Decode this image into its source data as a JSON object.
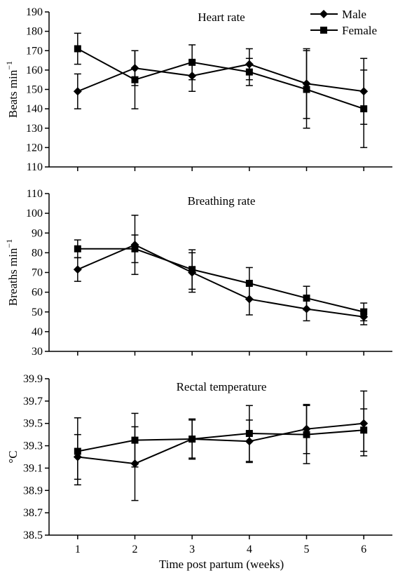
{
  "legend": [
    {
      "label": "Male",
      "marker": "diamond"
    },
    {
      "label": "Female",
      "marker": "square"
    }
  ],
  "xlabel": "Time post partum (weeks)",
  "chart_data": [
    {
      "type": "line",
      "title": "Heart rate",
      "xlabel": "Time post partum (weeks)",
      "ylabel": "Beats min",
      "ylabel_sup": "−1",
      "x": [
        1,
        2,
        3,
        4,
        5,
        6
      ],
      "xlim": [
        0.5,
        6.5
      ],
      "ylim": [
        110,
        190
      ],
      "yticks": [
        "110",
        "120",
        "130",
        "140",
        "150",
        "160",
        "170",
        "180",
        "190"
      ],
      "grid": false,
      "legend_position": "top-right",
      "series": [
        {
          "name": "Male",
          "marker": "diamond",
          "values": [
            149,
            161,
            157,
            163,
            153,
            149
          ],
          "error": [
            9,
            9,
            8,
            8,
            18,
            17
          ]
        },
        {
          "name": "Female",
          "marker": "square",
          "values": [
            171,
            155,
            164,
            159,
            150,
            140
          ],
          "error": [
            8,
            15,
            9,
            7,
            20,
            20
          ]
        }
      ]
    },
    {
      "type": "line",
      "title": "Breathing rate",
      "xlabel": "Time post partum (weeks)",
      "ylabel": "Breaths min",
      "ylabel_sup": "−1",
      "x": [
        1,
        2,
        3,
        4,
        5,
        6
      ],
      "xlim": [
        0.5,
        6.5
      ],
      "ylim": [
        30,
        110
      ],
      "yticks": [
        "30",
        "40",
        "50",
        "60",
        "70",
        "80",
        "90",
        "100",
        "110"
      ],
      "grid": false,
      "series": [
        {
          "name": "Male",
          "marker": "diamond",
          "values": [
            71.5,
            84,
            70,
            56.5,
            51.5,
            47.5
          ],
          "error": [
            6,
            15,
            10,
            8,
            6,
            4
          ]
        },
        {
          "name": "Female",
          "marker": "square",
          "values": [
            82,
            82,
            71.5,
            64.5,
            57,
            50
          ],
          "error": [
            4.5,
            7,
            10,
            8,
            6,
            4.5
          ]
        }
      ]
    },
    {
      "type": "line",
      "title": "Rectal temperature",
      "xlabel": "Time post partum (weeks)",
      "ylabel": "°C",
      "ylabel_sup": "",
      "x": [
        1,
        2,
        3,
        4,
        5,
        6
      ],
      "xlim": [
        0.5,
        6.5
      ],
      "ylim": [
        38.5,
        39.9
      ],
      "yticks": [
        "38.5",
        "38.7",
        "38.9",
        "39.1",
        "39.3",
        "39.5",
        "39.7",
        "39.9"
      ],
      "xticks": [
        "1",
        "2",
        "3",
        "4",
        "5",
        "6"
      ],
      "grid": false,
      "series": [
        {
          "name": "Male",
          "marker": "diamond",
          "values": [
            39.2,
            39.14,
            39.36,
            39.34,
            39.45,
            39.5
          ],
          "error": [
            0.2,
            0.33,
            0.18,
            0.19,
            0.22,
            0.29
          ]
        },
        {
          "name": "Female",
          "marker": "square",
          "values": [
            39.25,
            39.35,
            39.36,
            39.41,
            39.4,
            39.44
          ],
          "error": [
            0.3,
            0.24,
            0.17,
            0.25,
            0.26,
            0.19
          ]
        }
      ]
    }
  ]
}
